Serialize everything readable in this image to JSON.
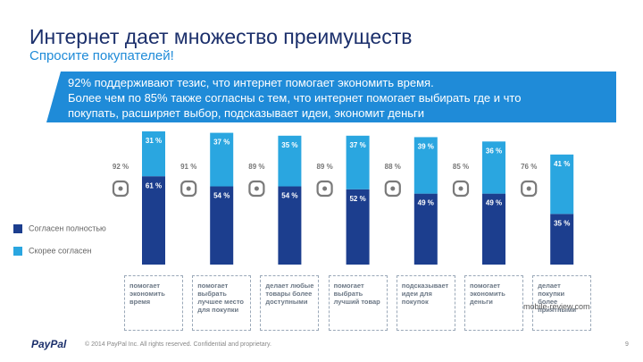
{
  "slide": {
    "title": "Интернет дает множество преимуществ",
    "subtitle": "Спросите покупателей!",
    "banner": [
      "92% поддерживают тезис, что интернет помогает экономить время.",
      "Более чем по 85% также согласны с тем,  что интернет помогает выбирать где и что",
      "покупать, расширяет выбор, подсказывает идеи, экономит деньги"
    ],
    "logo": "PayPal",
    "footer": "© 2014 PayPal Inc. All rights reserved. Confidential and proprietary.",
    "page": "9",
    "watermark": "mobile-review.com"
  },
  "chart_data": {
    "type": "bar",
    "stacked": true,
    "categories": [
      "помогает экономить время",
      "помогает выбрать лучшее место для покупки",
      "делает любые товары более доступными",
      "помогает выбрать лучший товар",
      "подсказывает идеи для покупок",
      "помогает экономить деньги",
      "делает покупки более приятными"
    ],
    "series": [
      {
        "name": "Согласен полностью",
        "color": "#1c3e8e",
        "values": [
          61,
          54,
          54,
          52,
          49,
          49,
          35
        ],
        "value_labels": [
          "61 %",
          "54 %",
          "54 %",
          "52 %",
          "49 %",
          "49 %",
          "35 %"
        ]
      },
      {
        "name": "Скорее согласен",
        "color": "#2aa6e0",
        "values": [
          31,
          37,
          35,
          37,
          39,
          36,
          41
        ],
        "value_labels": [
          "31 %",
          "37 %",
          "35 %",
          "37 %",
          "39 %",
          "36 %",
          "41 %"
        ]
      }
    ],
    "totals": {
      "values": [
        92,
        91,
        89,
        89,
        88,
        85,
        76
      ],
      "value_labels": [
        "92 %",
        "91 %",
        "89 %",
        "89 %",
        "88 %",
        "85 %",
        "76 %"
      ]
    },
    "ylim": [
      0,
      100
    ]
  }
}
